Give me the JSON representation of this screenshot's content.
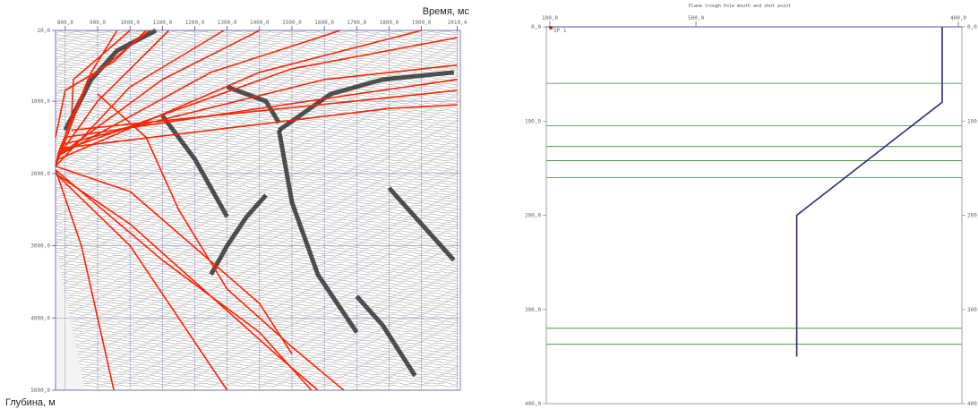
{
  "chart_data": [
    {
      "type": "line",
      "xlabel": "Время, мс",
      "ylabel": "Глубина, м",
      "x_ticks": [
        "800,0",
        "900,0",
        "1000,0",
        "1100,0",
        "1200,0",
        "1300,0",
        "1400,0",
        "1500,0",
        "1600,0",
        "1700,0",
        "1800,0",
        "1900,0",
        "2010,4"
      ],
      "y_ticks": [
        "20,0",
        "1000,0",
        "2000,0",
        "3000,0",
        "4000,0",
        "5000,0"
      ],
      "xlim": [
        770,
        2020
      ],
      "ylim": [
        20,
        5000
      ],
      "series": [
        {
          "color": "#ff2200",
          "points": [
            [
              1000,
              20
            ],
            [
              825,
              700
            ],
            [
              820,
              1200
            ],
            [
              770,
              1900
            ]
          ]
        },
        {
          "color": "#ff2200",
          "points": [
            [
              960,
              20
            ],
            [
              880,
              600
            ],
            [
              770,
              1900
            ]
          ]
        },
        {
          "color": "#ff2200",
          "points": [
            [
              1060,
              20
            ],
            [
              870,
              700
            ],
            [
              780,
              1700
            ],
            [
              770,
              1900
            ]
          ]
        },
        {
          "color": "#ff2200",
          "points": [
            [
              1120,
              20
            ],
            [
              900,
              1000
            ],
            [
              780,
              1750
            ]
          ]
        },
        {
          "color": "#ff2200",
          "points": [
            [
              1290,
              20
            ],
            [
              1000,
              800
            ],
            [
              770,
              1900
            ]
          ]
        },
        {
          "color": "#ff2200",
          "points": [
            [
              1400,
              20
            ],
            [
              1100,
              700
            ],
            [
              780,
              1750
            ]
          ]
        },
        {
          "color": "#ff2200",
          "points": [
            [
              1650,
              20
            ],
            [
              1250,
              600
            ],
            [
              780,
              1750
            ]
          ]
        },
        {
          "color": "#ff2200",
          "points": [
            [
              1900,
              20
            ],
            [
              1400,
              600
            ],
            [
              780,
              1800
            ]
          ]
        },
        {
          "color": "#ff2200",
          "points": [
            [
              2010,
              120
            ],
            [
              1500,
              550
            ],
            [
              780,
              1700
            ]
          ]
        },
        {
          "color": "#ff2200",
          "points": [
            [
              2010,
              500
            ],
            [
              1600,
              700
            ],
            [
              790,
              1600
            ]
          ]
        },
        {
          "color": "#ff2200",
          "points": [
            [
              2010,
              700
            ],
            [
              1700,
              900
            ],
            [
              800,
              1500
            ]
          ]
        },
        {
          "color": "#ff2200",
          "points": [
            [
              2010,
              850
            ],
            [
              1800,
              950
            ],
            [
              820,
              1400
            ]
          ]
        },
        {
          "color": "#ff2200",
          "points": [
            [
              2010,
              1050
            ],
            [
              1800,
              1100
            ],
            [
              790,
              1650
            ]
          ]
        },
        {
          "color": "#ff2200",
          "points": [
            [
              770,
              1500
            ],
            [
              800,
              850
            ],
            [
              950,
              450
            ],
            [
              1050,
              20
            ]
          ]
        },
        {
          "color": "#ff2200",
          "points": [
            [
              770,
              1950
            ],
            [
              850,
              3000
            ],
            [
              900,
              4000
            ],
            [
              950,
              5000
            ]
          ]
        },
        {
          "color": "#ff2200",
          "points": [
            [
              770,
              2000
            ],
            [
              1000,
              3000
            ],
            [
              1150,
              4000
            ],
            [
              1300,
              5000
            ]
          ]
        },
        {
          "color": "#ff2200",
          "points": [
            [
              770,
              1950
            ],
            [
              1100,
              3200
            ],
            [
              1400,
              4200
            ],
            [
              1560,
              5000
            ]
          ]
        },
        {
          "color": "#ff2200",
          "points": [
            [
              900,
              900
            ],
            [
              1050,
              1500
            ],
            [
              1150,
              2500
            ],
            [
              1300,
              3600
            ],
            [
              1500,
              4400
            ],
            [
              1660,
              5000
            ]
          ]
        },
        {
          "color": "#ff2200",
          "points": [
            [
              770,
              2000
            ],
            [
              1000,
              2700
            ],
            [
              1200,
              3500
            ],
            [
              1450,
              4500
            ],
            [
              1580,
              5000
            ]
          ]
        },
        {
          "color": "#ff2200",
          "points": [
            [
              770,
              1900
            ],
            [
              1000,
              2250
            ],
            [
              1400,
              3800
            ],
            [
              1500,
              4500
            ]
          ]
        }
      ]
    },
    {
      "type": "line",
      "title": "Plane trough hole mouth and shot point",
      "x_ticks": [
        "100,0",
        "500,0",
        "400,0"
      ],
      "y_ticks": [
        "0,0",
        "100,0",
        "200,0",
        "300,0",
        "400,0"
      ],
      "xlim": [
        0,
        400
      ],
      "ylim": [
        0,
        400
      ],
      "marker_label": "SP 1",
      "series": [
        {
          "color": "#2b2b7a",
          "points": [
            [
              381,
              0
            ],
            [
              381,
              80
            ],
            [
              241,
              200
            ],
            [
              241,
              350
            ]
          ]
        }
      ],
      "horizons": [
        60,
        105,
        127,
        142,
        160,
        320,
        337
      ]
    }
  ]
}
